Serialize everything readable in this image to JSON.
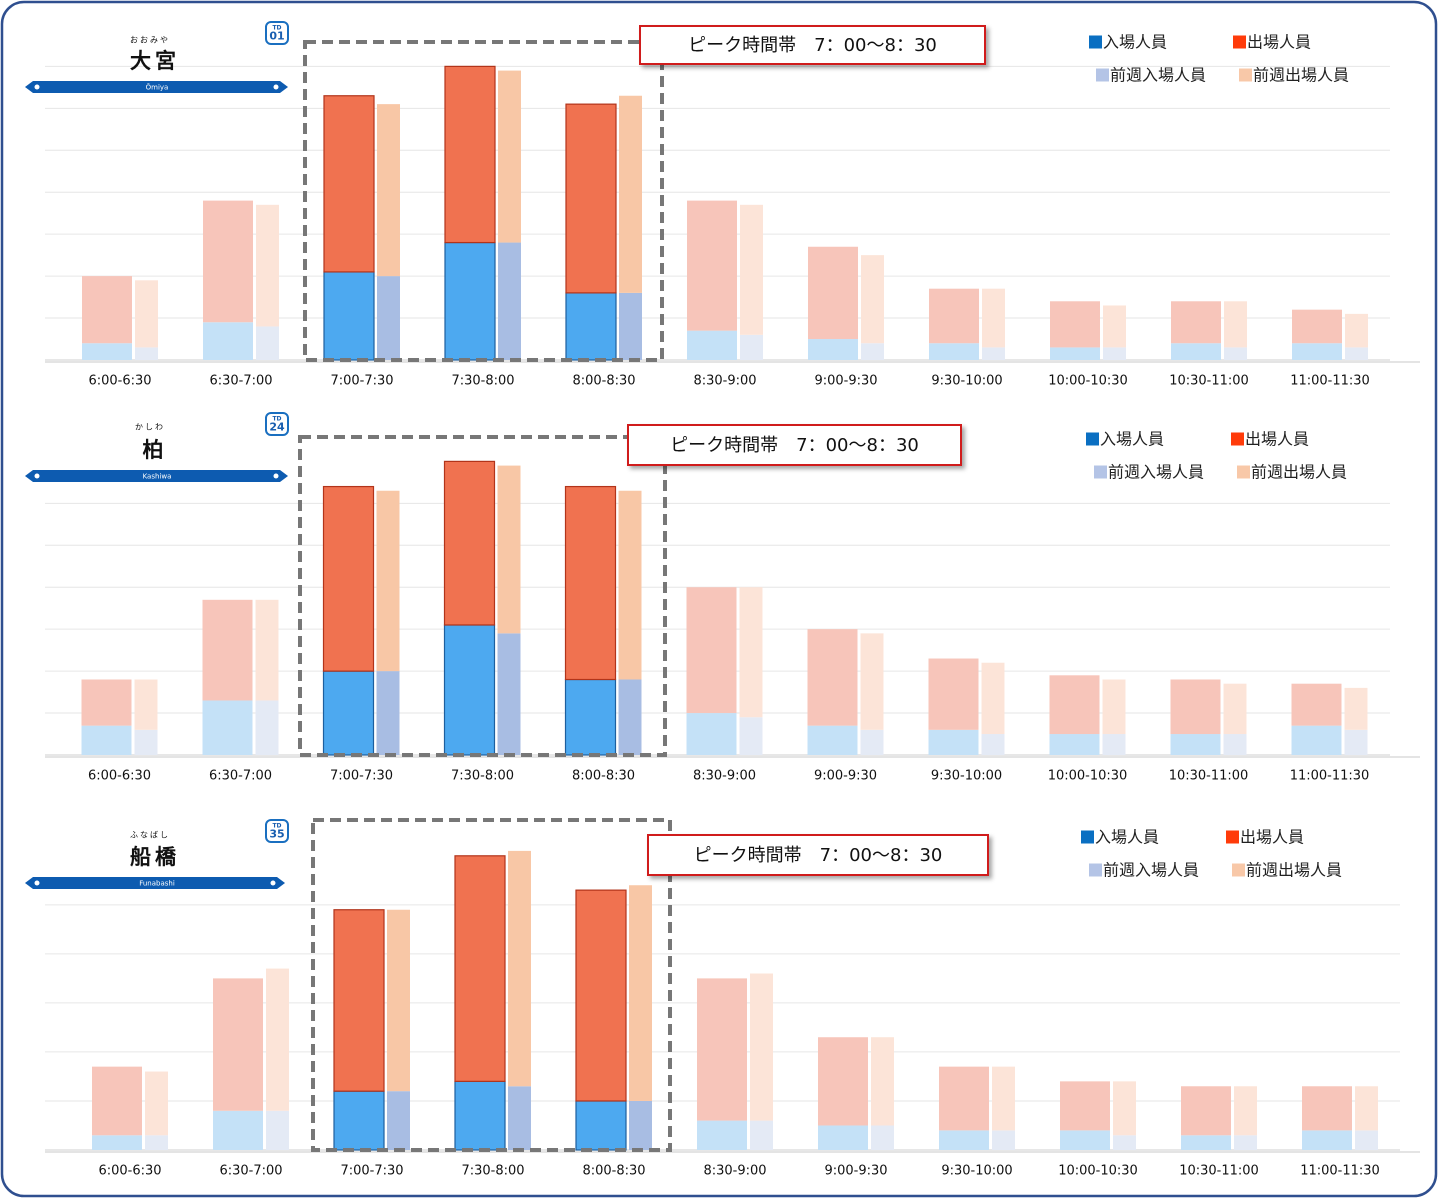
{
  "chart_data": [
    {
      "type": "bar",
      "stacked": true,
      "station": {
        "kana": "おおみや",
        "name": "大宮",
        "romaji": "Ōmiya",
        "line_code": "TD",
        "number": "01"
      },
      "annotation": "ピーク時間帯　7：00～8：30",
      "categories": [
        "6:00-6:30",
        "6:30-7:00",
        "7:00-7:30",
        "7:30-8:00",
        "8:00-8:30",
        "8:30-9:00",
        "9:00-9:30",
        "9:30-10:00",
        "10:00-10:30",
        "10:30-11:00",
        "11:00-11:30"
      ],
      "highlight": [
        2,
        3,
        4
      ],
      "series": [
        {
          "name": "入場人員",
          "stack": "current",
          "color": "#0a6fc2",
          "bar_color": "#4da9f0",
          "faded_color": "#c4e1f7",
          "values": [
            0.4,
            0.9,
            2.1,
            2.8,
            1.6,
            0.7,
            0.5,
            0.4,
            0.3,
            0.4,
            0.4
          ]
        },
        {
          "name": "出場人員",
          "stack": "current",
          "color": "#ff3b0a",
          "bar_color": "#f07250",
          "faded_color": "#f7c5ba",
          "values": [
            1.6,
            2.9,
            4.2,
            4.2,
            4.5,
            3.1,
            2.2,
            1.3,
            1.1,
            1.0,
            0.8
          ]
        },
        {
          "name": "前週入場人員",
          "stack": "previous",
          "color": "#b4c4e6",
          "bar_color": "#a8bde3",
          "faded_color": "#e4eaf5",
          "values": [
            0.3,
            0.8,
            2.0,
            2.8,
            1.6,
            0.6,
            0.4,
            0.3,
            0.3,
            0.3,
            0.3
          ]
        },
        {
          "name": "前週出場人員",
          "stack": "previous",
          "color": "#f8c8a8",
          "bar_color": "#f8c7a6",
          "faded_color": "#fce4d8",
          "values": [
            1.6,
            2.9,
            4.1,
            4.1,
            4.7,
            3.1,
            2.1,
            1.4,
            1.0,
            1.1,
            0.8
          ]
        }
      ],
      "ylim": [
        0,
        7.2
      ],
      "yticks": [
        0,
        1,
        2,
        3,
        4,
        5,
        6,
        7
      ],
      "grid": true,
      "legend": "upper-right"
    },
    {
      "type": "bar",
      "stacked": true,
      "station": {
        "kana": "かしわ",
        "name": "柏",
        "romaji": "Kashiwa",
        "line_code": "TD",
        "number": "24"
      },
      "annotation": "ピーク時間帯　7：00～8：30",
      "categories": [
        "6:00-6:30",
        "6:30-7:00",
        "7:00-7:30",
        "7:30-8:00",
        "8:00-8:30",
        "8:30-9:00",
        "9:00-9:30",
        "9:30-10:00",
        "10:00-10:30",
        "10:30-11:00",
        "11:00-11:30"
      ],
      "highlight": [
        2,
        3,
        4
      ],
      "series": [
        {
          "name": "入場人員",
          "stack": "current",
          "color": "#0a6fc2",
          "bar_color": "#4da9f0",
          "faded_color": "#c4e1f7",
          "values": [
            0.7,
            1.3,
            2.0,
            3.1,
            1.8,
            1.0,
            0.7,
            0.6,
            0.5,
            0.5,
            0.7
          ]
        },
        {
          "name": "出場人員",
          "stack": "current",
          "color": "#ff3b0a",
          "bar_color": "#f07250",
          "faded_color": "#f7c5ba",
          "values": [
            1.1,
            2.4,
            4.4,
            3.9,
            4.6,
            3.0,
            2.3,
            1.7,
            1.4,
            1.3,
            1.0
          ]
        },
        {
          "name": "前週入場人員",
          "stack": "previous",
          "color": "#b4c4e6",
          "bar_color": "#a8bde3",
          "faded_color": "#e4eaf5",
          "values": [
            0.6,
            1.3,
            2.0,
            2.9,
            1.8,
            0.9,
            0.6,
            0.5,
            0.5,
            0.5,
            0.6
          ]
        },
        {
          "name": "前週出場人員",
          "stack": "previous",
          "color": "#f8c8a8",
          "bar_color": "#f8c7a6",
          "faded_color": "#fce4d8",
          "values": [
            1.2,
            2.4,
            4.3,
            4.0,
            4.5,
            3.1,
            2.3,
            1.7,
            1.3,
            1.2,
            1.0
          ]
        }
      ],
      "ylim": [
        0,
        7.2
      ],
      "yticks": [
        0,
        1,
        2,
        3,
        4,
        5,
        6
      ],
      "grid": true,
      "legend": "upper-right"
    },
    {
      "type": "bar",
      "stacked": true,
      "station": {
        "kana": "ふなばし",
        "name": "船橋",
        "romaji": "Funabashi",
        "line_code": "TD",
        "number": "35"
      },
      "annotation": "ピーク時間帯　7：00～8：30",
      "categories": [
        "6:00-6:30",
        "6:30-7:00",
        "7:00-7:30",
        "7:30-8:00",
        "8:00-8:30",
        "8:30-9:00",
        "9:00-9:30",
        "9:30-10:00",
        "10:00-10:30",
        "10:30-11:00",
        "11:00-11:30"
      ],
      "highlight": [
        2,
        3,
        4
      ],
      "series": [
        {
          "name": "入場人員",
          "stack": "current",
          "color": "#0a6fc2",
          "bar_color": "#4da9f0",
          "faded_color": "#c4e1f7",
          "values": [
            0.3,
            0.8,
            1.2,
            1.4,
            1.0,
            0.6,
            0.5,
            0.4,
            0.4,
            0.3,
            0.4
          ]
        },
        {
          "name": "出場人員",
          "stack": "current",
          "color": "#ff3b0a",
          "bar_color": "#f07250",
          "faded_color": "#f7c5ba",
          "values": [
            1.4,
            2.7,
            3.7,
            4.6,
            4.3,
            2.9,
            1.8,
            1.3,
            1.0,
            1.0,
            0.9
          ]
        },
        {
          "name": "前週入場人員",
          "stack": "previous",
          "color": "#b4c4e6",
          "bar_color": "#a8bde3",
          "faded_color": "#e4eaf5",
          "values": [
            0.3,
            0.8,
            1.2,
            1.3,
            1.0,
            0.6,
            0.5,
            0.4,
            0.3,
            0.3,
            0.4
          ]
        },
        {
          "name": "前週出場人員",
          "stack": "previous",
          "color": "#f8c8a8",
          "bar_color": "#f8c7a6",
          "faded_color": "#fce4d8",
          "values": [
            1.3,
            2.9,
            3.7,
            4.8,
            4.4,
            3.0,
            1.8,
            1.3,
            1.1,
            1.0,
            0.9
          ]
        }
      ],
      "ylim": [
        0,
        6.2
      ],
      "yticks": [
        0,
        1,
        2,
        3,
        4,
        5
      ],
      "grid": true,
      "legend": "upper-right"
    }
  ]
}
